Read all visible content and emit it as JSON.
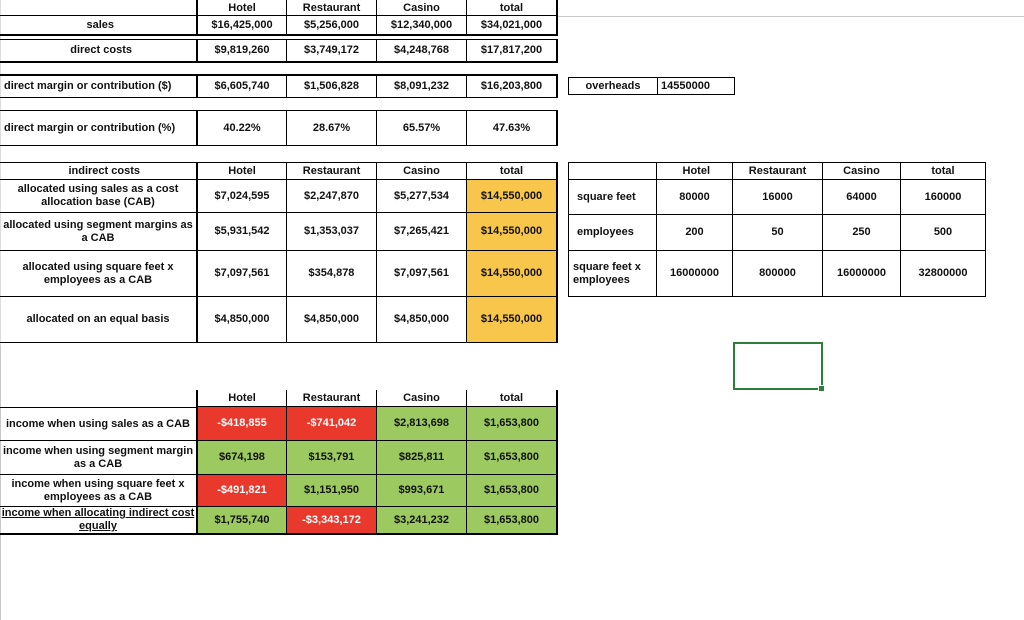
{
  "colors": {
    "total_fill": "#f7c64a",
    "loss_fill": "#e8392c",
    "gain_fill": "#9cca60",
    "selection": "#2f7d3a"
  },
  "headers": {
    "hotel": "Hotel",
    "restaurant": "Restaurant",
    "casino": "Casino",
    "total": "total"
  },
  "summary": {
    "sales": {
      "label": "sales",
      "hotel": "$16,425,000",
      "restaurant": "$5,256,000",
      "casino": "$12,340,000",
      "total": "$34,021,000"
    },
    "direct_costs": {
      "label": "direct costs",
      "hotel": "$9,819,260",
      "restaurant": "$3,749,172",
      "casino": "$4,248,768",
      "total": "$17,817,200"
    },
    "direct_margin": {
      "label": "direct margin or contribution ($)",
      "hotel": "$6,605,740",
      "restaurant": "$1,506,828",
      "casino": "$8,091,232",
      "total": "$16,203,800"
    },
    "direct_margin_pct": {
      "label": "direct margin or contribution (%)",
      "hotel": "40.22%",
      "restaurant": "28.67%",
      "casino": "65.57%",
      "total": "47.63%"
    }
  },
  "overheads": {
    "label": "overheads",
    "value": "14550000"
  },
  "indirect": {
    "title": "indirect costs",
    "rows": [
      {
        "label": "allocated using sales as a cost allocation base (CAB)",
        "hotel": "$7,024,595",
        "restaurant": "$2,247,870",
        "casino": "$5,277,534",
        "total": "$14,550,000"
      },
      {
        "label": "allocated using segment margins as a CAB",
        "hotel": "$5,931,542",
        "restaurant": "$1,353,037",
        "casino": "$7,265,421",
        "total": "$14,550,000"
      },
      {
        "label": "allocated using square feet x employees as a CAB",
        "hotel": "$7,097,561",
        "restaurant": "$354,878",
        "casino": "$7,097,561",
        "total": "$14,550,000"
      },
      {
        "label": "allocated on an equal basis",
        "hotel": "$4,850,000",
        "restaurant": "$4,850,000",
        "casino": "$4,850,000",
        "total": "$14,550,000"
      }
    ]
  },
  "allocation_bases": {
    "rows": [
      {
        "label": "square feet",
        "hotel": "80000",
        "restaurant": "16000",
        "casino": "64000",
        "total": "160000"
      },
      {
        "label": "employees",
        "hotel": "200",
        "restaurant": "50",
        "casino": "250",
        "total": "500"
      },
      {
        "label": "square feet x employees",
        "hotel": "16000000",
        "restaurant": "800000",
        "casino": "16000000",
        "total": "32800000"
      }
    ]
  },
  "income": {
    "rows": [
      {
        "label": "income when using sales as a CAB",
        "hotel": "-$418,855",
        "restaurant": "-$741,042",
        "casino": "$2,813,698",
        "total": "$1,653,800",
        "hotel_loss": true,
        "restaurant_loss": true
      },
      {
        "label": "income when using segment margin as a CAB",
        "hotel": "$674,198",
        "restaurant": "$153,791",
        "casino": "$825,811",
        "total": "$1,653,800",
        "hotel_loss": false,
        "restaurant_loss": false
      },
      {
        "label": "income when using square feet x employees as a CAB",
        "hotel": "-$491,821",
        "restaurant": "$1,151,950",
        "casino": "$993,671",
        "total": "$1,653,800",
        "hotel_loss": true,
        "restaurant_loss": false
      },
      {
        "label": "income when allocating indirect cost equally",
        "hotel": "$1,755,740",
        "restaurant": "-$3,343,172",
        "casino": "$3,241,232",
        "total": "$1,653,800",
        "hotel_loss": false,
        "restaurant_loss": true
      }
    ]
  }
}
